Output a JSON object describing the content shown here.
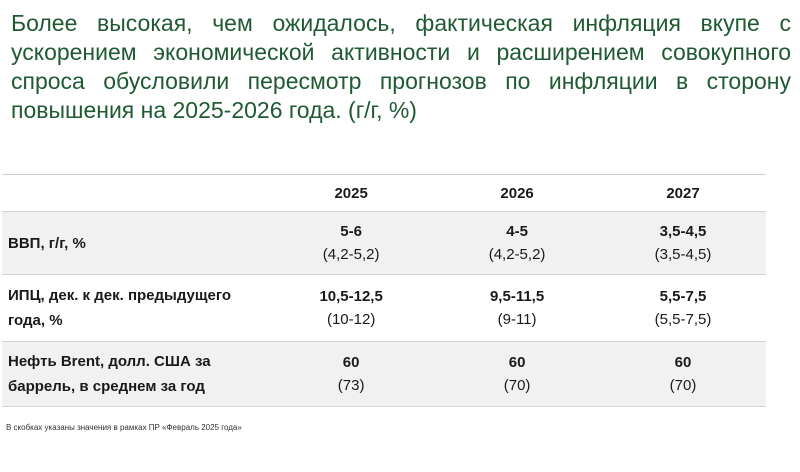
{
  "slide": {
    "title": "Более высокая, чем ожидалось, фактическая инфляция вкупе с ускорением экономической активности и расширением совокупного спроса обусловили пересмотр прогнозов по инфляции в сторону повышения на 2025-2026 года.  (г/г, %)"
  },
  "table": {
    "columns": [
      "2025",
      "2026",
      "2027"
    ],
    "rows": [
      {
        "label": "ВВП, г/г, %",
        "values": [
          {
            "main": "5-6",
            "prev": "(4,2-5,2)"
          },
          {
            "main": "4-5",
            "prev": "(4,2-5,2)"
          },
          {
            "main": "3,5-4,5",
            "prev": "(3,5-4,5)"
          }
        ]
      },
      {
        "label": "ИПЦ, дек. к дек. предыдущего года, %",
        "values": [
          {
            "main": "10,5-12,5",
            "prev": "(10-12)"
          },
          {
            "main": "9,5-11,5",
            "prev": "(9-11)"
          },
          {
            "main": "5,5-7,5",
            "prev": "(5,5-7,5)"
          }
        ]
      },
      {
        "label": "Нефть Brent, долл. США за баррель, в среднем за год",
        "values": [
          {
            "main": "60",
            "prev": "(73)"
          },
          {
            "main": "60",
            "prev": "(70)"
          },
          {
            "main": "60",
            "prev": "(70)"
          }
        ]
      }
    ]
  },
  "footnote": "В скобках указаны значения в рамках ПР «Февраль 2025 года»",
  "colors": {
    "title": "#1f5a32",
    "row_shade": "#f1f1f1"
  }
}
